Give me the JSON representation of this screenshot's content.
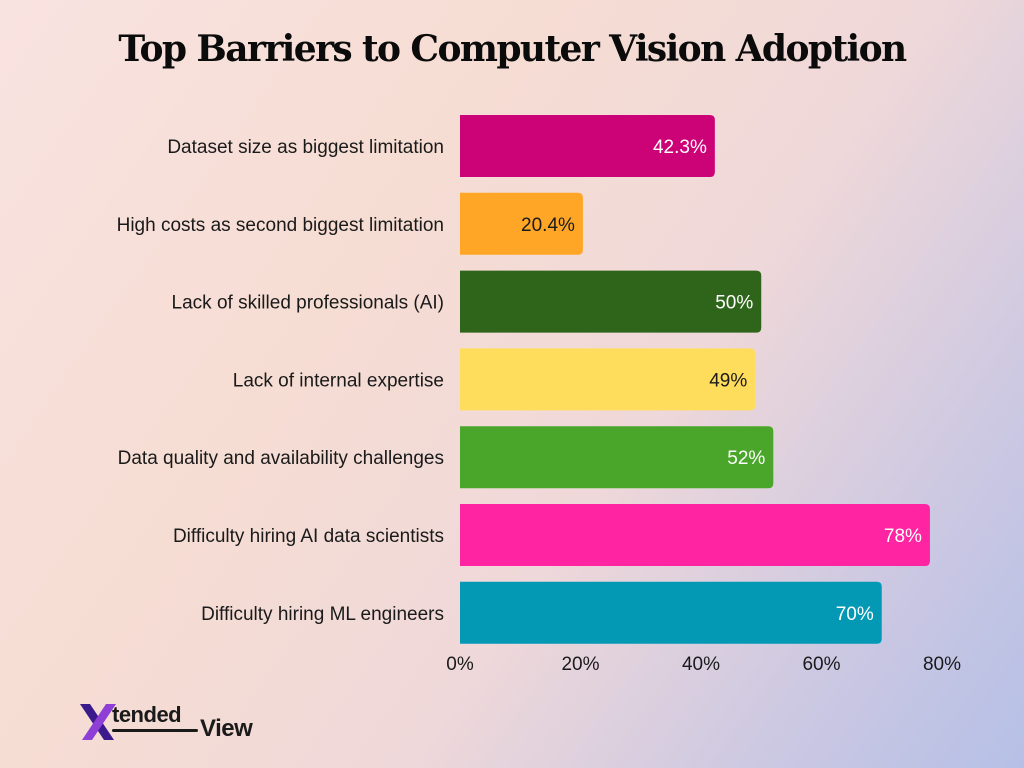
{
  "chart_data": {
    "type": "bar",
    "orientation": "horizontal",
    "title": "Top Barriers to Computer Vision Adoption",
    "categories": [
      "Dataset size as biggest limitation",
      "High costs as second biggest limitation",
      "Lack of skilled professionals (AI)",
      "Lack of internal expertise",
      "Data quality and availability challenges",
      "Difficulty hiring AI data scientists",
      "Difficulty hiring ML engineers"
    ],
    "values": [
      42.3,
      20.4,
      50,
      49,
      52,
      78,
      70
    ],
    "data_labels": [
      "42.3%",
      "20.4%",
      "50%",
      "49%",
      "52%",
      "78%",
      "70%"
    ],
    "colors": [
      "#cc0277",
      "#ffa626",
      "#2f651b",
      "#ffdd5c",
      "#4aa62a",
      "#ff24a2",
      "#0399b5"
    ],
    "label_colors": [
      "#ffffff",
      "#1a1a1a",
      "#ffffff",
      "#1a1a1a",
      "#ffffff",
      "#ffffff",
      "#ffffff"
    ],
    "xlim": [
      0,
      80
    ],
    "xticks": [
      "0%",
      "20%",
      "40%",
      "60%",
      "80%"
    ],
    "grid": false,
    "legend": "none"
  },
  "logo": {
    "word_1": "tended",
    "word_2": "View",
    "colors": {
      "x_dark": "#3b1a8c",
      "x_light": "#8e3fd6"
    }
  }
}
